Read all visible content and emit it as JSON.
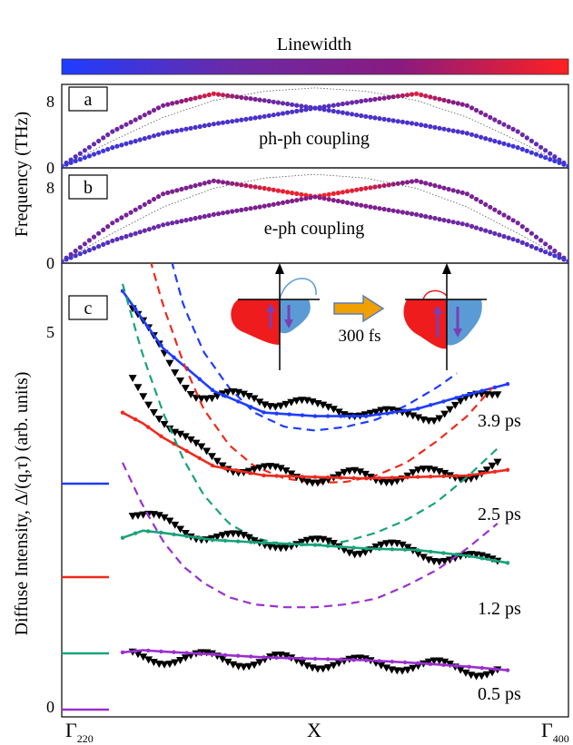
{
  "figure": {
    "colorbar_title": "Linewidth",
    "colorbar_colors": [
      "#1f3cff",
      "#6a2aa8",
      "#8a1a80",
      "#ff2020"
    ],
    "y_axis_label_top": "Frequency (THz)",
    "y_axis_label_bottom": "Diffuse Intensity, Δ/(q,τ) (arb. units)",
    "x_ticks": [
      {
        "main": "Γ",
        "sub": "220"
      },
      {
        "main": "X",
        "sub": ""
      },
      {
        "main": "Γ",
        "sub": "400"
      }
    ],
    "inset_label": "300 fs",
    "inset_colors": {
      "red": "#ee1c1c",
      "blue": "#5b9bd5",
      "arrow": "#f0a000",
      "purple": "#7a3fb5"
    }
  },
  "chart_data": [
    {
      "type": "line",
      "panel_label": "a",
      "title": "ph-ph coupling",
      "ylabel": "Frequency (THz)",
      "ylim": [
        0,
        9.5
      ],
      "y_ticks": [
        "0",
        "8"
      ],
      "x": [
        0,
        0.1,
        0.2,
        0.3,
        0.4,
        0.5,
        0.6,
        0.7,
        0.8,
        0.9,
        1.0
      ],
      "series": [
        {
          "values": [
            0,
            4.1,
            7.2,
            8.6,
            7.8,
            6.9,
            7.8,
            8.6,
            7.2,
            4.1,
            0
          ],
          "linewidth": [
            0.2,
            0.35,
            0.55,
            0.9,
            0.4,
            0.2,
            0.4,
            0.9,
            0.55,
            0.35,
            0.2
          ]
        },
        {
          "values": [
            0,
            2.2,
            3.9,
            5.0,
            5.9,
            6.9,
            5.9,
            5.0,
            3.9,
            2.2,
            0
          ],
          "linewidth": [
            0.1,
            0.15,
            0.2,
            0.2,
            0.2,
            0.2,
            0.2,
            0.2,
            0.2,
            0.15,
            0.1
          ]
        },
        {
          "values": [
            0,
            3.0,
            5.8,
            7.8,
            8.9,
            9.3,
            8.9,
            7.8,
            5.8,
            3.0,
            0
          ],
          "style": "dotted"
        }
      ]
    },
    {
      "type": "line",
      "panel_label": "b",
      "title": "e-ph coupling",
      "ylabel": "Frequency (THz)",
      "ylim": [
        0,
        9.5
      ],
      "y_ticks": [
        "0",
        "8"
      ],
      "x": [
        0,
        0.1,
        0.2,
        0.3,
        0.4,
        0.5,
        0.6,
        0.7,
        0.8,
        0.9,
        1.0
      ],
      "series": [
        {
          "values": [
            0,
            4.1,
            7.2,
            8.6,
            7.8,
            6.9,
            7.8,
            8.6,
            7.2,
            4.1,
            0
          ],
          "linewidth": [
            0.3,
            0.45,
            0.5,
            0.55,
            0.9,
            1.0,
            0.9,
            0.55,
            0.5,
            0.45,
            0.3
          ]
        },
        {
          "values": [
            0,
            2.2,
            3.9,
            5.0,
            5.9,
            6.9,
            5.9,
            5.0,
            3.9,
            2.2,
            0
          ],
          "linewidth": [
            0.15,
            0.25,
            0.35,
            0.45,
            0.55,
            0.6,
            0.55,
            0.45,
            0.35,
            0.25,
            0.15
          ]
        },
        {
          "values": [
            0,
            3.0,
            5.8,
            7.8,
            8.9,
            9.3,
            8.9,
            7.8,
            5.8,
            3.0,
            0
          ],
          "style": "dotted"
        }
      ]
    },
    {
      "type": "line",
      "panel_label": "c",
      "ylabel": "Diffuse Intensity, Δ/(q,τ) (arb. units)",
      "ylim": [
        0,
        6.1
      ],
      "y_ticks": [
        "0",
        "5"
      ],
      "xlim": [
        0,
        1
      ],
      "x_tick_labels": [
        "Γ220",
        "X",
        "Γ400"
      ],
      "series": [
        {
          "name": "3.9 ps",
          "color": "#1f3cff",
          "offset": 3.3,
          "fit_x": [
            0.12,
            0.16,
            0.2,
            0.3,
            0.4,
            0.5,
            0.6,
            0.7,
            0.8,
            0.88
          ],
          "fit_y": [
            5.8,
            5.4,
            5.0,
            4.4,
            4.1,
            4.05,
            4.05,
            4.15,
            4.35,
            4.5
          ],
          "dash_x": [
            0.21,
            0.24,
            0.28,
            0.33,
            0.38,
            0.44,
            0.5,
            0.56,
            0.62,
            0.68,
            0.74,
            0.78
          ],
          "dash_y": [
            6.4,
            5.6,
            4.95,
            4.45,
            4.1,
            3.9,
            3.85,
            3.9,
            4.0,
            4.2,
            4.45,
            4.65
          ],
          "data_x": [
            0.14,
            0.18,
            0.22,
            0.26,
            0.3,
            0.34,
            0.38,
            0.42,
            0.46,
            0.5,
            0.54,
            0.58,
            0.62,
            0.66,
            0.7,
            0.74,
            0.78,
            0.82,
            0.86
          ],
          "data_y": [
            5.55,
            5.1,
            4.7,
            4.4,
            4.28,
            4.3,
            4.32,
            4.26,
            4.22,
            4.15,
            4.18,
            4.12,
            4.05,
            4.05,
            4.1,
            4.05,
            4.15,
            4.3,
            4.42
          ]
        },
        {
          "name": "2.5 ps",
          "color": "#ee2a1c",
          "offset": 2.2,
          "fit_x": [
            0.12,
            0.16,
            0.2,
            0.3,
            0.4,
            0.5,
            0.6,
            0.7,
            0.8,
            0.88
          ],
          "fit_y": [
            4.1,
            3.95,
            3.75,
            3.35,
            3.22,
            3.2,
            3.18,
            3.2,
            3.22,
            3.3
          ],
          "dash_x": [
            0.16,
            0.2,
            0.24,
            0.28,
            0.33,
            0.38,
            0.44,
            0.5,
            0.56,
            0.62,
            0.68,
            0.74,
            0.8,
            0.85
          ],
          "dash_y": [
            6.6,
            5.6,
            4.8,
            4.15,
            3.65,
            3.35,
            3.18,
            3.12,
            3.13,
            3.22,
            3.4,
            3.7,
            4.05,
            4.45
          ],
          "data_x": [
            0.14,
            0.18,
            0.22,
            0.26,
            0.3,
            0.34,
            0.38,
            0.42,
            0.46,
            0.5,
            0.54,
            0.58,
            0.62,
            0.66,
            0.7,
            0.74,
            0.78,
            0.82,
            0.86
          ],
          "data_y": [
            4.55,
            4.2,
            3.85,
            3.6,
            3.45,
            3.35,
            3.3,
            3.25,
            3.22,
            3.2,
            3.18,
            3.2,
            3.18,
            3.22,
            3.25,
            3.2,
            3.22,
            3.28,
            3.35
          ]
        },
        {
          "name": "1.2 ps",
          "color": "#1aa27a",
          "offset": 1.2,
          "fit_x": [
            0.12,
            0.16,
            0.2,
            0.3,
            0.4,
            0.5,
            0.6,
            0.7,
            0.8,
            0.88
          ],
          "fit_y": [
            2.35,
            2.45,
            2.42,
            2.32,
            2.28,
            2.25,
            2.2,
            2.18,
            2.1,
            2.0
          ],
          "dash_x": [
            0.12,
            0.16,
            0.2,
            0.24,
            0.28,
            0.33,
            0.38,
            0.44,
            0.5,
            0.56,
            0.62,
            0.68,
            0.74,
            0.8,
            0.86
          ],
          "dash_y": [
            5.9,
            4.9,
            4.1,
            3.45,
            2.95,
            2.55,
            2.35,
            2.25,
            2.25,
            2.3,
            2.42,
            2.6,
            2.85,
            3.2,
            3.6
          ],
          "data_x": [
            0.14,
            0.18,
            0.22,
            0.26,
            0.3,
            0.34,
            0.38,
            0.42,
            0.46,
            0.5,
            0.54,
            0.58,
            0.62,
            0.66,
            0.7,
            0.74,
            0.78,
            0.82,
            0.86
          ],
          "data_y": [
            2.7,
            2.6,
            2.5,
            2.42,
            2.38,
            2.32,
            2.28,
            2.3,
            2.26,
            2.24,
            2.25,
            2.2,
            2.22,
            2.18,
            2.15,
            2.1,
            2.05,
            2.02,
            2.05
          ]
        },
        {
          "name": "0.5 ps",
          "color": "#9a2fd0",
          "offset": 0.0,
          "fit_x": [
            0.12,
            0.16,
            0.2,
            0.3,
            0.4,
            0.5,
            0.6,
            0.7,
            0.8,
            0.88
          ],
          "fit_y": [
            0.75,
            0.78,
            0.76,
            0.72,
            0.68,
            0.66,
            0.64,
            0.6,
            0.55,
            0.5
          ],
          "dash_x": [
            0.12,
            0.16,
            0.2,
            0.24,
            0.28,
            0.33,
            0.38,
            0.44,
            0.5,
            0.56,
            0.62,
            0.68,
            0.74,
            0.8,
            0.86
          ],
          "dash_y": [
            3.4,
            2.8,
            2.3,
            1.95,
            1.72,
            1.52,
            1.42,
            1.38,
            1.38,
            1.42,
            1.5,
            1.68,
            1.9,
            2.2,
            2.55
          ],
          "data_x": [
            0.14,
            0.18,
            0.22,
            0.26,
            0.3,
            0.34,
            0.38,
            0.42,
            0.46,
            0.5,
            0.54,
            0.58,
            0.62,
            0.66,
            0.7,
            0.74,
            0.78,
            0.82,
            0.86
          ],
          "data_y": [
            0.68,
            0.67,
            0.66,
            0.65,
            0.66,
            0.64,
            0.62,
            0.63,
            0.6,
            0.6,
            0.61,
            0.58,
            0.57,
            0.58,
            0.56,
            0.54,
            0.52,
            0.5,
            0.5
          ]
        }
      ]
    }
  ]
}
